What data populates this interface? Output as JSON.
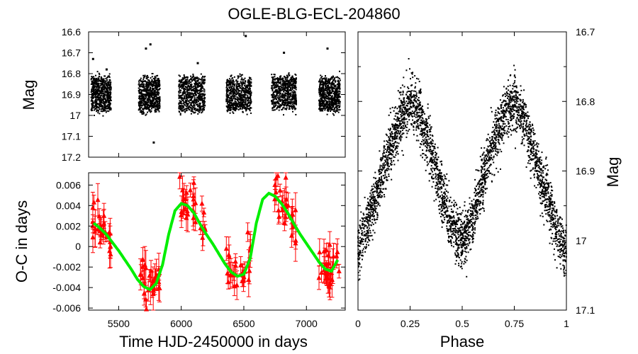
{
  "chart_data": {
    "title": "OGLE-BLG-ECL-204860",
    "panels": [
      {
        "id": "light-curve",
        "type": "scatter",
        "ylabel": "Mag",
        "xlim": [
          5260,
          7310
        ],
        "ylim": [
          17.2,
          16.6
        ],
        "y_reversed": true,
        "yticks": [
          "16.6",
          "16.7",
          "16.8",
          "16.9",
          "17",
          "17.1",
          "17.2"
        ],
        "ytick_values": [
          16.6,
          16.7,
          16.8,
          16.9,
          17.0,
          17.1,
          17.2
        ],
        "marker_color": "#000000",
        "seasons": [
          {
            "x_start": 5280,
            "x_end": 5440,
            "mag_center": 16.9,
            "mag_spread": 0.09,
            "outliers": [
              16.73,
              16.78
            ]
          },
          {
            "x_start": 5660,
            "x_end": 5830,
            "mag_center": 16.9,
            "mag_spread": 0.09,
            "outliers": [
              16.68,
              16.66,
              17.13
            ]
          },
          {
            "x_start": 5980,
            "x_end": 6190,
            "mag_center": 16.9,
            "mag_spread": 0.09,
            "outliers": [
              16.75
            ]
          },
          {
            "x_start": 6360,
            "x_end": 6560,
            "mag_center": 16.9,
            "mag_spread": 0.09,
            "outliers": [
              16.62
            ]
          },
          {
            "x_start": 6720,
            "x_end": 6920,
            "mag_center": 16.89,
            "mag_spread": 0.09,
            "outliers": [
              16.7
            ]
          },
          {
            "x_start": 7100,
            "x_end": 7270,
            "mag_center": 16.9,
            "mag_spread": 0.09,
            "outliers": [
              16.68
            ]
          }
        ]
      },
      {
        "id": "o-c",
        "type": "line+errorbar",
        "xlabel": "Time HJD-2450000 in days",
        "ylabel": "O-C in days",
        "xlim": [
          5260,
          7310
        ],
        "ylim": [
          -0.0062,
          0.0072
        ],
        "xticks": [
          "5500",
          "6000",
          "6500",
          "7000"
        ],
        "xtick_values": [
          5500,
          6000,
          6500,
          7000
        ],
        "yticks": [
          "0.006",
          "0.004",
          "0.002",
          "0",
          "-0.002",
          "-0.004",
          "-0.006"
        ],
        "ytick_values": [
          0.006,
          0.004,
          0.002,
          0,
          -0.002,
          -0.004,
          -0.006
        ],
        "points_color": "#ff0000",
        "fit_color": "#00ee00",
        "fit_curve": {
          "x": [
            5300,
            5350,
            5400,
            5450,
            5500,
            5550,
            5600,
            5650,
            5700,
            5750,
            5800,
            5850,
            5900,
            5950,
            6000,
            6050,
            6100,
            6150,
            6200,
            6250,
            6300,
            6350,
            6400,
            6450,
            6500,
            6550,
            6600,
            6650,
            6700,
            6750,
            6800,
            6850,
            6900,
            6950,
            7000,
            7050,
            7100,
            7150,
            7200,
            7250
          ],
          "y": [
            0.0023,
            0.0018,
            0.0012,
            0.0004,
            -0.0004,
            -0.0013,
            -0.0022,
            -0.0032,
            -0.0039,
            -0.0042,
            -0.0036,
            -0.0018,
            0.0012,
            0.0035,
            0.0042,
            0.004,
            0.0033,
            0.0022,
            0.0012,
            0.0003,
            -0.0007,
            -0.0017,
            -0.0025,
            -0.0029,
            -0.0027,
            -0.0012,
            0.0023,
            0.0046,
            0.0052,
            0.0049,
            0.0042,
            0.0033,
            0.0022,
            0.0012,
            0.0003,
            -0.0006,
            -0.0015,
            -0.0022,
            -0.0024,
            -0.0013
          ]
        },
        "seasons": [
          {
            "x_start": 5290,
            "x_end": 5440
          },
          {
            "x_start": 5660,
            "x_end": 5830
          },
          {
            "x_start": 5980,
            "x_end": 6200
          },
          {
            "x_start": 6360,
            "x_end": 6560
          },
          {
            "x_start": 6720,
            "x_end": 6920
          },
          {
            "x_start": 7100,
            "x_end": 7270
          }
        ]
      },
      {
        "id": "phased",
        "type": "scatter",
        "xlabel": "Phase",
        "ylabel": "Mag",
        "xlim": [
          0,
          1
        ],
        "ylim": [
          17.1,
          16.7
        ],
        "y_reversed": true,
        "xticks": [
          "0",
          "0.25",
          "0.5",
          "0.75",
          "1"
        ],
        "xtick_values": [
          0,
          0.25,
          0.5,
          0.75,
          1
        ],
        "yticks": [
          "16.7",
          "16.8",
          "16.9",
          "17",
          "17.1"
        ],
        "ytick_values": [
          16.7,
          16.8,
          16.9,
          17.0,
          17.1
        ],
        "marker_color": "#000000",
        "curve": {
          "phase": [
            0.0,
            0.05,
            0.1,
            0.15,
            0.2,
            0.25,
            0.3,
            0.35,
            0.4,
            0.45,
            0.5,
            0.55,
            0.6,
            0.65,
            0.7,
            0.75,
            0.8,
            0.85,
            0.9,
            0.95,
            1.0
          ],
          "mag": [
            17.02,
            16.97,
            16.92,
            16.87,
            16.83,
            16.8,
            16.82,
            16.87,
            16.93,
            16.98,
            17.0,
            16.97,
            16.91,
            16.86,
            16.82,
            16.8,
            16.83,
            16.88,
            16.93,
            16.98,
            17.02
          ]
        },
        "scatter_spread": 0.035
      }
    ]
  }
}
